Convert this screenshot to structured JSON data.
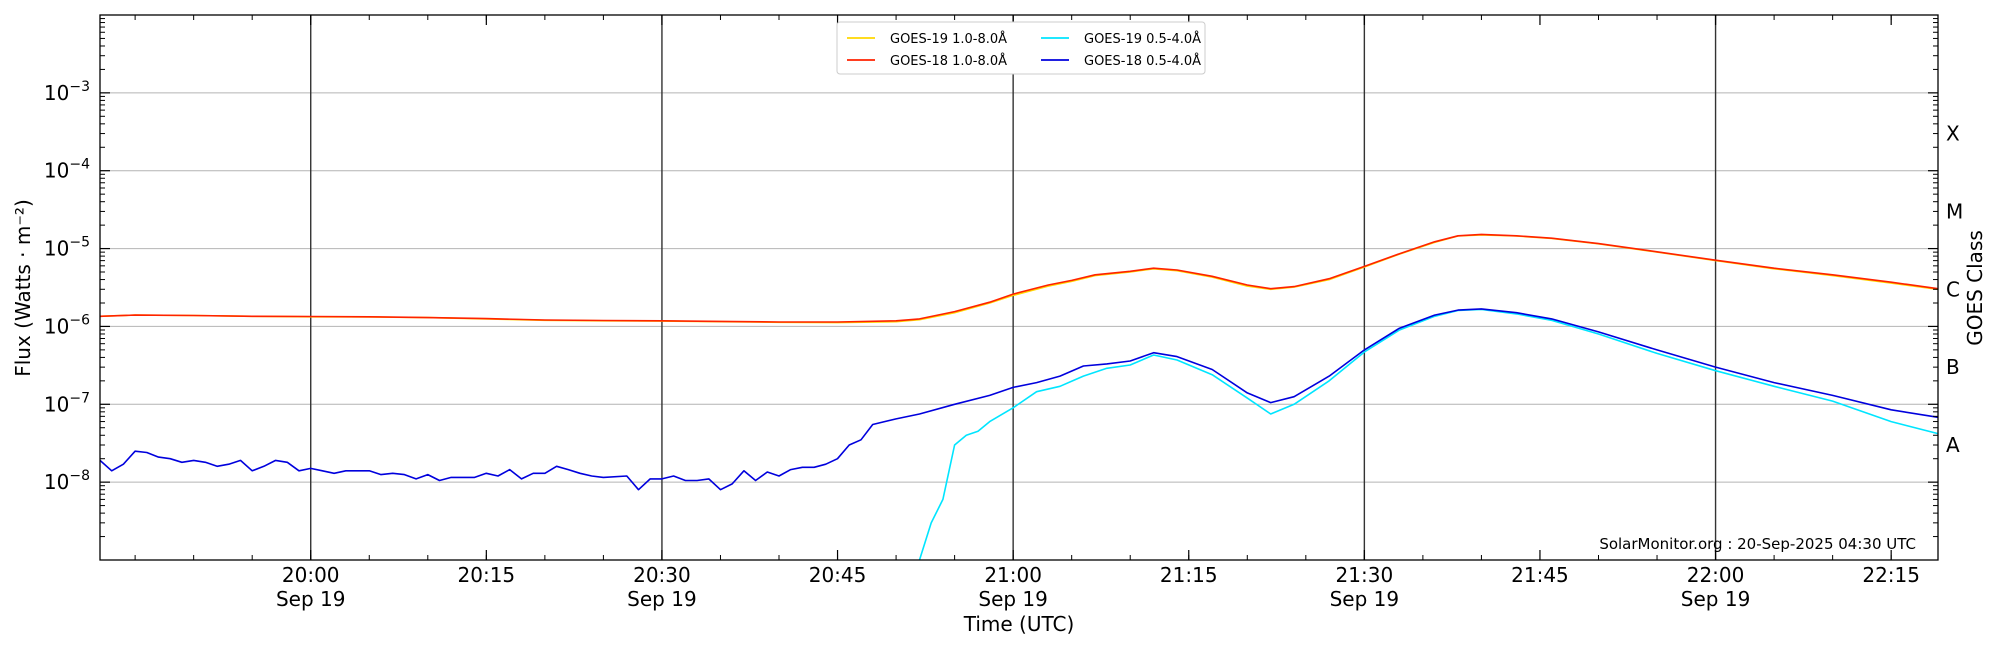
{
  "chart_data": {
    "type": "line",
    "ylabel": "Flux (Watts · m⁻²)",
    "right_ylabel": "GOES Class",
    "xlabel": "Time (UTC)",
    "y_scale": "log",
    "ylim": [
      1e-09,
      0.01
    ],
    "xlim": [
      "2025-09-19T19:42",
      "2025-09-19T22:19"
    ],
    "grid": "horizontal",
    "legend_position": "top-center",
    "credit": "SolarMonitor.org : 20-Sep-2025 04:30 UTC",
    "y_ticks": [
      {
        "value": 1e-08,
        "base": "10",
        "exp": "−8"
      },
      {
        "value": 1e-07,
        "base": "10",
        "exp": "−7"
      },
      {
        "value": 1e-06,
        "base": "10",
        "exp": "−6"
      },
      {
        "value": 1e-05,
        "base": "10",
        "exp": "−5"
      },
      {
        "value": 0.0001,
        "base": "10",
        "exp": "−4"
      },
      {
        "value": 0.001,
        "base": "10",
        "exp": "−3"
      }
    ],
    "goes_classes": [
      {
        "label": "A",
        "value": 3e-08
      },
      {
        "label": "B",
        "value": 3e-07
      },
      {
        "label": "C",
        "value": 3e-06
      },
      {
        "label": "M",
        "value": 3e-05
      },
      {
        "label": "X",
        "value": 0.0003
      }
    ],
    "x_ticks": [
      {
        "time": "2025-09-19T20:00",
        "label": "20:00",
        "date": "Sep 19",
        "vline": true
      },
      {
        "time": "2025-09-19T20:15",
        "label": "20:15",
        "date": "",
        "vline": false
      },
      {
        "time": "2025-09-19T20:30",
        "label": "20:30",
        "date": "Sep 19",
        "vline": true
      },
      {
        "time": "2025-09-19T20:45",
        "label": "20:45",
        "date": "",
        "vline": false
      },
      {
        "time": "2025-09-19T21:00",
        "label": "21:00",
        "date": "Sep 19",
        "vline": true
      },
      {
        "time": "2025-09-19T21:15",
        "label": "21:15",
        "date": "",
        "vline": false
      },
      {
        "time": "2025-09-19T21:30",
        "label": "21:30",
        "date": "Sep 19",
        "vline": true
      },
      {
        "time": "2025-09-19T21:45",
        "label": "21:45",
        "date": "",
        "vline": false
      },
      {
        "time": "2025-09-19T22:00",
        "label": "22:00",
        "date": "Sep 19",
        "vline": true
      },
      {
        "time": "2025-09-19T22:15",
        "label": "22:15",
        "date": "",
        "vline": false
      }
    ],
    "series": [
      {
        "name": "GOES-19 1.0-8.0Å",
        "color": "#ffd700",
        "points": [
          [
            "2025-09-19T19:42",
            1.35e-06
          ],
          [
            "2025-09-19T19:45",
            1.4e-06
          ],
          [
            "2025-09-19T19:50",
            1.38e-06
          ],
          [
            "2025-09-19T19:55",
            1.35e-06
          ],
          [
            "2025-09-19T20:00",
            1.33e-06
          ],
          [
            "2025-09-19T20:05",
            1.32e-06
          ],
          [
            "2025-09-19T20:10",
            1.3e-06
          ],
          [
            "2025-09-19T20:15",
            1.25e-06
          ],
          [
            "2025-09-19T20:20",
            1.2e-06
          ],
          [
            "2025-09-19T20:25",
            1.18e-06
          ],
          [
            "2025-09-19T20:30",
            1.17e-06
          ],
          [
            "2025-09-19T20:35",
            1.15e-06
          ],
          [
            "2025-09-19T20:40",
            1.13e-06
          ],
          [
            "2025-09-19T20:45",
            1.12e-06
          ],
          [
            "2025-09-19T20:50",
            1.15e-06
          ],
          [
            "2025-09-19T20:52",
            1.22e-06
          ],
          [
            "2025-09-19T20:55",
            1.5e-06
          ],
          [
            "2025-09-19T20:58",
            2e-06
          ],
          [
            "2025-09-19T21:00",
            2.5e-06
          ],
          [
            "2025-09-19T21:03",
            3.3e-06
          ],
          [
            "2025-09-19T21:05",
            3.8e-06
          ],
          [
            "2025-09-19T21:07",
            4.5e-06
          ],
          [
            "2025-09-19T21:10",
            5e-06
          ],
          [
            "2025-09-19T21:12",
            5.5e-06
          ],
          [
            "2025-09-19T21:14",
            5.2e-06
          ],
          [
            "2025-09-19T21:17",
            4.3e-06
          ],
          [
            "2025-09-19T21:20",
            3.3e-06
          ],
          [
            "2025-09-19T21:22",
            3e-06
          ],
          [
            "2025-09-19T21:24",
            3.2e-06
          ],
          [
            "2025-09-19T21:27",
            4e-06
          ],
          [
            "2025-09-19T21:30",
            5.8e-06
          ],
          [
            "2025-09-19T21:33",
            8.5e-06
          ],
          [
            "2025-09-19T21:36",
            1.2e-05
          ],
          [
            "2025-09-19T21:38",
            1.45e-05
          ],
          [
            "2025-09-19T21:40",
            1.5e-05
          ],
          [
            "2025-09-19T21:43",
            1.45e-05
          ],
          [
            "2025-09-19T21:46",
            1.35e-05
          ],
          [
            "2025-09-19T21:50",
            1.15e-05
          ],
          [
            "2025-09-19T21:55",
            9e-06
          ],
          [
            "2025-09-19T22:00",
            7e-06
          ],
          [
            "2025-09-19T22:05",
            5.5e-06
          ],
          [
            "2025-09-19T22:10",
            4.5e-06
          ],
          [
            "2025-09-19T22:15",
            3.6e-06
          ],
          [
            "2025-09-19T22:19",
            3e-06
          ]
        ]
      },
      {
        "name": "GOES-18 1.0-8.0Å",
        "color": "#ff2200",
        "points": [
          [
            "2025-09-19T19:42",
            1.35e-06
          ],
          [
            "2025-09-19T19:45",
            1.4e-06
          ],
          [
            "2025-09-19T19:50",
            1.38e-06
          ],
          [
            "2025-09-19T19:55",
            1.35e-06
          ],
          [
            "2025-09-19T20:00",
            1.34e-06
          ],
          [
            "2025-09-19T20:05",
            1.33e-06
          ],
          [
            "2025-09-19T20:10",
            1.3e-06
          ],
          [
            "2025-09-19T20:15",
            1.26e-06
          ],
          [
            "2025-09-19T20:20",
            1.21e-06
          ],
          [
            "2025-09-19T20:25",
            1.19e-06
          ],
          [
            "2025-09-19T20:30",
            1.18e-06
          ],
          [
            "2025-09-19T20:35",
            1.16e-06
          ],
          [
            "2025-09-19T20:40",
            1.14e-06
          ],
          [
            "2025-09-19T20:45",
            1.14e-06
          ],
          [
            "2025-09-19T20:50",
            1.18e-06
          ],
          [
            "2025-09-19T20:52",
            1.25e-06
          ],
          [
            "2025-09-19T20:55",
            1.55e-06
          ],
          [
            "2025-09-19T20:58",
            2.05e-06
          ],
          [
            "2025-09-19T21:00",
            2.6e-06
          ],
          [
            "2025-09-19T21:03",
            3.4e-06
          ],
          [
            "2025-09-19T21:05",
            3.9e-06
          ],
          [
            "2025-09-19T21:07",
            4.6e-06
          ],
          [
            "2025-09-19T21:10",
            5.1e-06
          ],
          [
            "2025-09-19T21:12",
            5.6e-06
          ],
          [
            "2025-09-19T21:14",
            5.3e-06
          ],
          [
            "2025-09-19T21:17",
            4.4e-06
          ],
          [
            "2025-09-19T21:20",
            3.4e-06
          ],
          [
            "2025-09-19T21:22",
            3.05e-06
          ],
          [
            "2025-09-19T21:24",
            3.25e-06
          ],
          [
            "2025-09-19T21:27",
            4.1e-06
          ],
          [
            "2025-09-19T21:30",
            5.9e-06
          ],
          [
            "2025-09-19T21:33",
            8.6e-06
          ],
          [
            "2025-09-19T21:36",
            1.22e-05
          ],
          [
            "2025-09-19T21:38",
            1.46e-05
          ],
          [
            "2025-09-19T21:40",
            1.52e-05
          ],
          [
            "2025-09-19T21:43",
            1.46e-05
          ],
          [
            "2025-09-19T21:46",
            1.36e-05
          ],
          [
            "2025-09-19T21:50",
            1.16e-05
          ],
          [
            "2025-09-19T21:55",
            9.1e-06
          ],
          [
            "2025-09-19T22:00",
            7.1e-06
          ],
          [
            "2025-09-19T22:05",
            5.6e-06
          ],
          [
            "2025-09-19T22:10",
            4.6e-06
          ],
          [
            "2025-09-19T22:15",
            3.7e-06
          ],
          [
            "2025-09-19T22:19",
            3.05e-06
          ]
        ]
      },
      {
        "name": "GOES-19 0.5-4.0Å",
        "color": "#00e5ff",
        "points": [
          [
            "2025-09-19T20:52",
            1e-09
          ],
          [
            "2025-09-19T20:53",
            3e-09
          ],
          [
            "2025-09-19T20:54",
            6e-09
          ],
          [
            "2025-09-19T20:55",
            3e-08
          ],
          [
            "2025-09-19T20:56",
            4e-08
          ],
          [
            "2025-09-19T20:57",
            4.5e-08
          ],
          [
            "2025-09-19T20:58",
            6e-08
          ],
          [
            "2025-09-19T21:00",
            9e-08
          ],
          [
            "2025-09-19T21:02",
            1.45e-07
          ],
          [
            "2025-09-19T21:04",
            1.7e-07
          ],
          [
            "2025-09-19T21:06",
            2.3e-07
          ],
          [
            "2025-09-19T21:08",
            2.9e-07
          ],
          [
            "2025-09-19T21:10",
            3.2e-07
          ],
          [
            "2025-09-19T21:12",
            4.3e-07
          ],
          [
            "2025-09-19T21:14",
            3.7e-07
          ],
          [
            "2025-09-19T21:17",
            2.4e-07
          ],
          [
            "2025-09-19T21:20",
            1.2e-07
          ],
          [
            "2025-09-19T21:22",
            7.5e-08
          ],
          [
            "2025-09-19T21:24",
            1e-07
          ],
          [
            "2025-09-19T21:27",
            2e-07
          ],
          [
            "2025-09-19T21:30",
            4.7e-07
          ],
          [
            "2025-09-19T21:33",
            9e-07
          ],
          [
            "2025-09-19T21:36",
            1.35e-06
          ],
          [
            "2025-09-19T21:38",
            1.6e-06
          ],
          [
            "2025-09-19T21:40",
            1.65e-06
          ],
          [
            "2025-09-19T21:43",
            1.45e-06
          ],
          [
            "2025-09-19T21:46",
            1.2e-06
          ],
          [
            "2025-09-19T21:50",
            8e-07
          ],
          [
            "2025-09-19T21:55",
            4.5e-07
          ],
          [
            "2025-09-19T22:00",
            2.7e-07
          ],
          [
            "2025-09-19T22:05",
            1.7e-07
          ],
          [
            "2025-09-19T22:10",
            1.1e-07
          ],
          [
            "2025-09-19T22:15",
            6e-08
          ],
          [
            "2025-09-19T22:19",
            4.2e-08
          ]
        ]
      },
      {
        "name": "GOES-18 0.5-4.0Å",
        "color": "#0000dd",
        "points": [
          [
            "2025-09-19T19:42",
            1.9e-08
          ],
          [
            "2025-09-19T19:43",
            1.4e-08
          ],
          [
            "2025-09-19T19:44",
            1.7e-08
          ],
          [
            "2025-09-19T19:45",
            2.5e-08
          ],
          [
            "2025-09-19T19:46",
            2.4e-08
          ],
          [
            "2025-09-19T19:47",
            2.1e-08
          ],
          [
            "2025-09-19T19:48",
            2e-08
          ],
          [
            "2025-09-19T19:49",
            1.8e-08
          ],
          [
            "2025-09-19T19:50",
            1.9e-08
          ],
          [
            "2025-09-19T19:51",
            1.8e-08
          ],
          [
            "2025-09-19T19:52",
            1.6e-08
          ],
          [
            "2025-09-19T19:53",
            1.7e-08
          ],
          [
            "2025-09-19T19:54",
            1.9e-08
          ],
          [
            "2025-09-19T19:55",
            1.4e-08
          ],
          [
            "2025-09-19T19:56",
            1.6e-08
          ],
          [
            "2025-09-19T19:57",
            1.9e-08
          ],
          [
            "2025-09-19T19:58",
            1.8e-08
          ],
          [
            "2025-09-19T19:59",
            1.4e-08
          ],
          [
            "2025-09-19T20:00",
            1.5e-08
          ],
          [
            "2025-09-19T20:01",
            1.4e-08
          ],
          [
            "2025-09-19T20:02",
            1.3e-08
          ],
          [
            "2025-09-19T20:03",
            1.4e-08
          ],
          [
            "2025-09-19T20:05",
            1.4e-08
          ],
          [
            "2025-09-19T20:06",
            1.25e-08
          ],
          [
            "2025-09-19T20:07",
            1.3e-08
          ],
          [
            "2025-09-19T20:08",
            1.25e-08
          ],
          [
            "2025-09-19T20:09",
            1.1e-08
          ],
          [
            "2025-09-19T20:10",
            1.25e-08
          ],
          [
            "2025-09-19T20:11",
            1.05e-08
          ],
          [
            "2025-09-19T20:12",
            1.15e-08
          ],
          [
            "2025-09-19T20:14",
            1.15e-08
          ],
          [
            "2025-09-19T20:15",
            1.3e-08
          ],
          [
            "2025-09-19T20:16",
            1.2e-08
          ],
          [
            "2025-09-19T20:17",
            1.45e-08
          ],
          [
            "2025-09-19T20:18",
            1.1e-08
          ],
          [
            "2025-09-19T20:19",
            1.3e-08
          ],
          [
            "2025-09-19T20:20",
            1.3e-08
          ],
          [
            "2025-09-19T20:21",
            1.6e-08
          ],
          [
            "2025-09-19T20:22",
            1.45e-08
          ],
          [
            "2025-09-19T20:23",
            1.3e-08
          ],
          [
            "2025-09-19T20:24",
            1.2e-08
          ],
          [
            "2025-09-19T20:25",
            1.15e-08
          ],
          [
            "2025-09-19T20:27",
            1.2e-08
          ],
          [
            "2025-09-19T20:28",
            8e-09
          ],
          [
            "2025-09-19T20:29",
            1.1e-08
          ],
          [
            "2025-09-19T20:30",
            1.1e-08
          ],
          [
            "2025-09-19T20:31",
            1.2e-08
          ],
          [
            "2025-09-19T20:32",
            1.05e-08
          ],
          [
            "2025-09-19T20:33",
            1.05e-08
          ],
          [
            "2025-09-19T20:34",
            1.1e-08
          ],
          [
            "2025-09-19T20:35",
            8e-09
          ],
          [
            "2025-09-19T20:36",
            9.5e-09
          ],
          [
            "2025-09-19T20:37",
            1.4e-08
          ],
          [
            "2025-09-19T20:38",
            1.05e-08
          ],
          [
            "2025-09-19T20:39",
            1.35e-08
          ],
          [
            "2025-09-19T20:40",
            1.2e-08
          ],
          [
            "2025-09-19T20:41",
            1.45e-08
          ],
          [
            "2025-09-19T20:42",
            1.55e-08
          ],
          [
            "2025-09-19T20:43",
            1.55e-08
          ],
          [
            "2025-09-19T20:44",
            1.7e-08
          ],
          [
            "2025-09-19T20:45",
            2e-08
          ],
          [
            "2025-09-19T20:46",
            3e-08
          ],
          [
            "2025-09-19T20:47",
            3.5e-08
          ],
          [
            "2025-09-19T20:48",
            5.5e-08
          ],
          [
            "2025-09-19T20:50",
            6.5e-08
          ],
          [
            "2025-09-19T20:52",
            7.5e-08
          ],
          [
            "2025-09-19T20:55",
            1e-07
          ],
          [
            "2025-09-19T20:58",
            1.3e-07
          ],
          [
            "2025-09-19T21:00",
            1.65e-07
          ],
          [
            "2025-09-19T21:02",
            1.9e-07
          ],
          [
            "2025-09-19T21:04",
            2.3e-07
          ],
          [
            "2025-09-19T21:06",
            3.1e-07
          ],
          [
            "2025-09-19T21:08",
            3.3e-07
          ],
          [
            "2025-09-19T21:10",
            3.6e-07
          ],
          [
            "2025-09-19T21:12",
            4.6e-07
          ],
          [
            "2025-09-19T21:14",
            4.1e-07
          ],
          [
            "2025-09-19T21:17",
            2.8e-07
          ],
          [
            "2025-09-19T21:20",
            1.4e-07
          ],
          [
            "2025-09-19T21:22",
            1.05e-07
          ],
          [
            "2025-09-19T21:24",
            1.25e-07
          ],
          [
            "2025-09-19T21:27",
            2.3e-07
          ],
          [
            "2025-09-19T21:30",
            5e-07
          ],
          [
            "2025-09-19T21:33",
            9.5e-07
          ],
          [
            "2025-09-19T21:36",
            1.4e-06
          ],
          [
            "2025-09-19T21:38",
            1.62e-06
          ],
          [
            "2025-09-19T21:40",
            1.68e-06
          ],
          [
            "2025-09-19T21:43",
            1.5e-06
          ],
          [
            "2025-09-19T21:46",
            1.25e-06
          ],
          [
            "2025-09-19T21:50",
            8.5e-07
          ],
          [
            "2025-09-19T21:55",
            5e-07
          ],
          [
            "2025-09-19T22:00",
            3e-07
          ],
          [
            "2025-09-19T22:05",
            1.9e-07
          ],
          [
            "2025-09-19T22:10",
            1.3e-07
          ],
          [
            "2025-09-19T22:15",
            8.5e-08
          ],
          [
            "2025-09-19T22:19",
            6.8e-08
          ]
        ]
      }
    ]
  }
}
